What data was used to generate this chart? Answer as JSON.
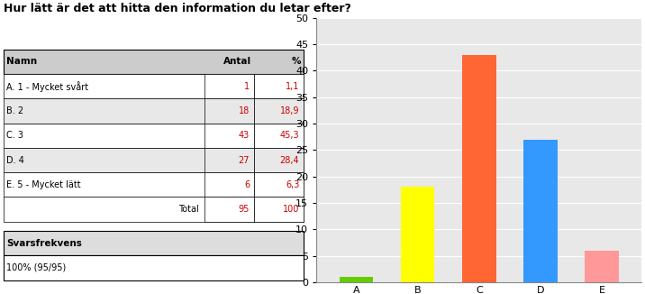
{
  "title": "Hur lätt är det att hitta den information du letar efter?",
  "categories": [
    "A",
    "B",
    "C",
    "D",
    "E"
  ],
  "values": [
    1,
    18,
    43,
    27,
    6
  ],
  "bar_colors": [
    "#66cc00",
    "#ffff00",
    "#ff6633",
    "#3399ff",
    "#ff9999"
  ],
  "ylim": [
    0,
    50
  ],
  "yticks": [
    0,
    5,
    10,
    15,
    20,
    25,
    30,
    35,
    40,
    45,
    50
  ],
  "table_headers": [
    "Namn",
    "Antal",
    "%"
  ],
  "table_rows": [
    [
      "A. 1 - Mycket svårt",
      "1",
      "1,1"
    ],
    [
      "B. 2",
      "18",
      "18,9"
    ],
    [
      "C. 3",
      "43",
      "45,3"
    ],
    [
      "D. 4",
      "27",
      "28,4"
    ],
    [
      "E. 5 - Mycket lätt",
      "6",
      "6,3"
    ],
    [
      "Total",
      "95",
      "100"
    ]
  ],
  "table_row_colors": [
    "#ffffff",
    "#e8e8e8",
    "#ffffff",
    "#e8e8e8",
    "#ffffff",
    "#ffffff"
  ],
  "svarsfrekvens_label": "Svarsfrekvens",
  "svarsfrekvens_value": "100% (95/95)",
  "background_color": "#ffffff",
  "chart_bg_color": "#e8e8e8",
  "text_color_red": "#cc0000",
  "text_color_black": "#000000"
}
